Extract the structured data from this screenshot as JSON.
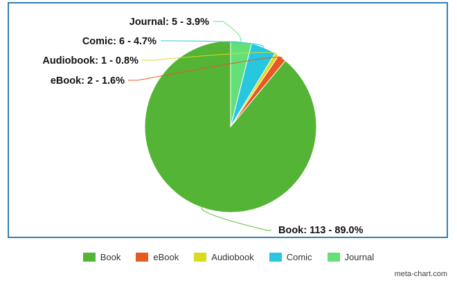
{
  "chart_data": {
    "type": "pie",
    "slices": [
      {
        "name": "Book",
        "value": 113,
        "percent": "89.0%",
        "label": "Book: 113 - 89.0%",
        "color": "#54b435"
      },
      {
        "name": "eBook",
        "value": 2,
        "percent": "1.6%",
        "label": "eBook: 2 - 1.6%",
        "color": "#e55a1f"
      },
      {
        "name": "Audiobook",
        "value": 1,
        "percent": "0.8%",
        "label": "Audiobook: 1 - 0.8%",
        "color": "#dadb1c"
      },
      {
        "name": "Comic",
        "value": 6,
        "percent": "4.7%",
        "label": "Comic: 6 - 4.7%",
        "color": "#28c7e0"
      },
      {
        "name": "Journal",
        "value": 5,
        "percent": "3.9%",
        "label": "Journal: 5 - 3.9%",
        "color": "#63e07a"
      }
    ],
    "legend": [
      "Book",
      "eBook",
      "Audiobook",
      "Comic",
      "Journal"
    ],
    "legend_position": "bottom",
    "start_angle": "top",
    "direction": "counter-clockwise"
  },
  "credit": "meta-chart.com"
}
